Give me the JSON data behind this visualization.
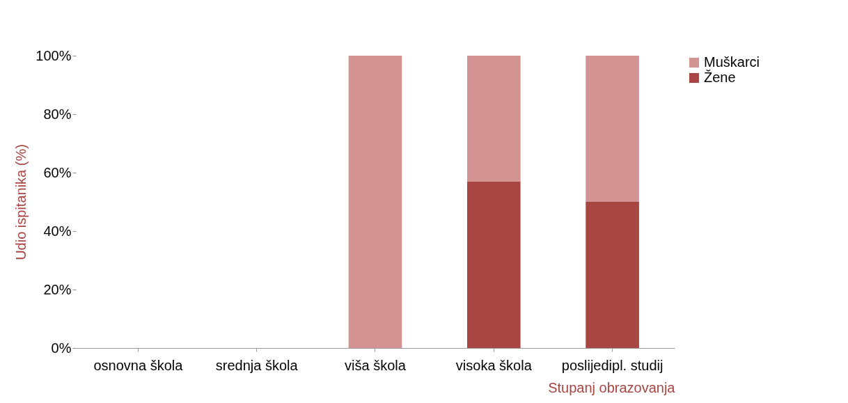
{
  "chart_data": {
    "type": "bar",
    "stacked": true,
    "ylabel": "Udio ispitanika (%)",
    "xlabel": "Stupanj obrazovanja",
    "categories": [
      "osnovna škola",
      "srednja škola",
      "viša škola",
      "visoka škola",
      "poslijedipl. studij"
    ],
    "series": [
      {
        "name": "Žene",
        "color": "#a94542",
        "values": [
          0,
          0,
          0,
          57,
          50
        ]
      },
      {
        "name": "Muškarci",
        "color": "#d39392",
        "values": [
          0,
          0,
          100,
          43,
          50
        ]
      }
    ],
    "ylim": [
      0,
      100
    ],
    "yticks": [
      {
        "value": 0,
        "label": "0%"
      },
      {
        "value": 20,
        "label": "20%"
      },
      {
        "value": 40,
        "label": "40%"
      },
      {
        "value": 60,
        "label": "60%"
      },
      {
        "value": 80,
        "label": "80%"
      },
      {
        "value": 100,
        "label": "100%"
      }
    ],
    "grid": false,
    "legend": "right"
  }
}
